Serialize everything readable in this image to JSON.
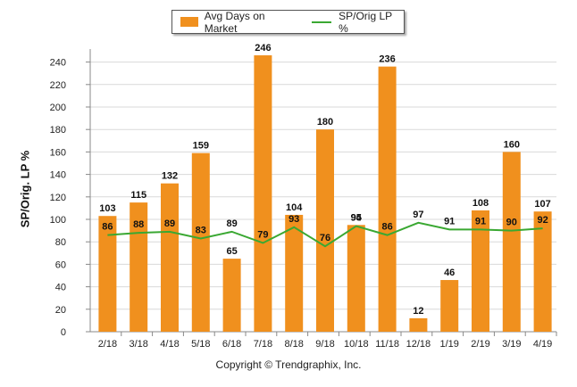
{
  "chart_data": {
    "type": "bar",
    "categories": [
      "2/18",
      "3/18",
      "4/18",
      "5/18",
      "6/18",
      "7/18",
      "8/18",
      "9/18",
      "10/18",
      "11/18",
      "12/18",
      "1/19",
      "2/19",
      "3/19",
      "4/19"
    ],
    "series": [
      {
        "name": "Avg Days on Market",
        "type": "bar",
        "color": "#f0901e",
        "values": [
          103,
          115,
          132,
          159,
          65,
          246,
          104,
          180,
          95,
          236,
          12,
          46,
          108,
          160,
          107
        ]
      },
      {
        "name": "SP/Orig LP %",
        "type": "line",
        "color": "#3aa832",
        "values": [
          86,
          88,
          89,
          83,
          89,
          79,
          93,
          76,
          94,
          86,
          97,
          91,
          91,
          90,
          92
        ]
      }
    ],
    "ylabel": "SP/Orig. LP %",
    "ylim": [
      0,
      250
    ],
    "yticks": [
      0,
      20,
      40,
      60,
      80,
      100,
      120,
      140,
      160,
      180,
      200,
      220,
      240
    ],
    "grid": true,
    "legend_position": "top-center"
  },
  "legend": {
    "bar_label": "Avg Days on Market",
    "line_label": "SP/Orig LP %"
  },
  "footer": "Copyright © Trendgraphix, Inc."
}
